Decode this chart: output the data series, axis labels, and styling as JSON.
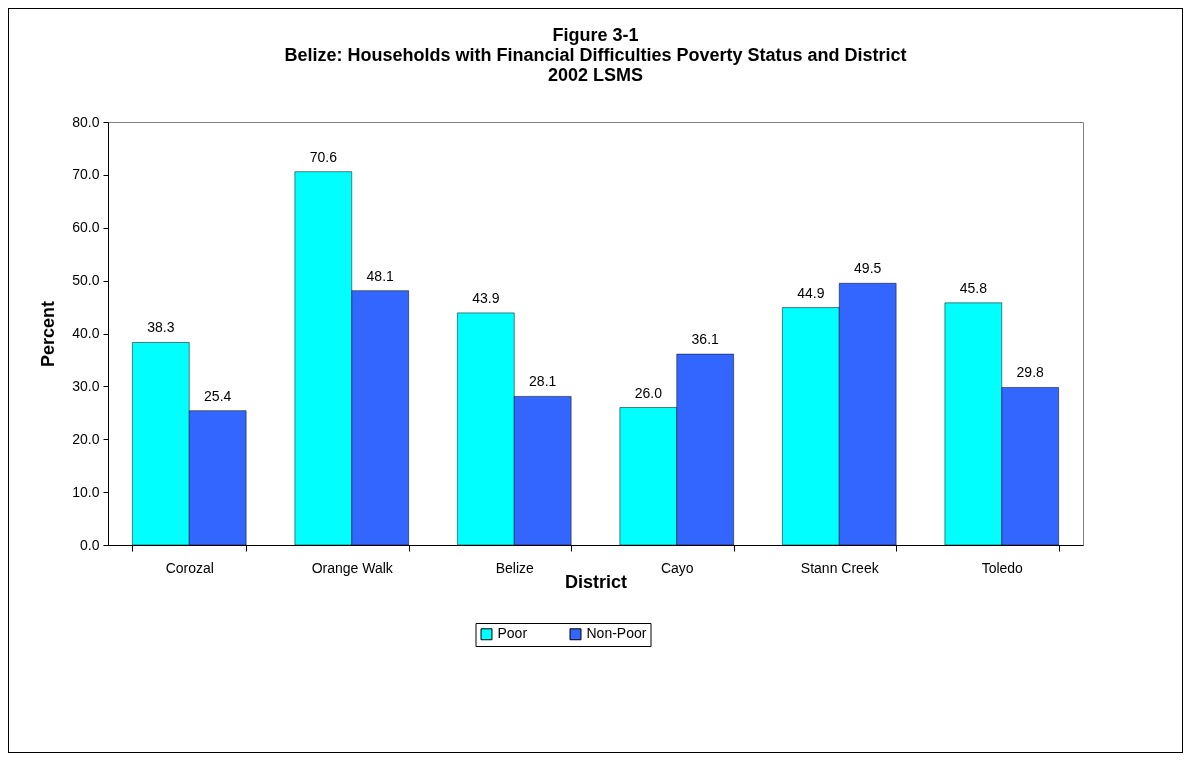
{
  "chart_data": {
    "type": "bar",
    "title": "Figure 3-1\nBelize: Households with Financial Difficulties Poverty Status and District\n2002 LSMS",
    "xlabel": "District",
    "ylabel": "Percent",
    "categories": [
      "Corozal",
      "Orange Walk",
      "Belize",
      "Cayo",
      "Stann Creek",
      "Toledo"
    ],
    "series": [
      {
        "name": "Poor",
        "color": "#00ffff",
        "values": [
          38.3,
          70.6,
          43.9,
          26,
          44.9,
          45.8
        ],
        "value_labels": [
          "38.3",
          "70.6",
          "43.9",
          "26.0",
          "44.9",
          "45.8"
        ]
      },
      {
        "name": "Non-Poor",
        "color": "#3366ff",
        "values": [
          25.4,
          48.1,
          28.1,
          36.1,
          49.5,
          29.8
        ],
        "value_labels": [
          "25.4",
          "48.1",
          "28.1",
          "36.1",
          "49.5",
          "29.8"
        ]
      }
    ],
    "ylim": [
      0,
      80
    ],
    "yticks": [
      {
        "value": 0,
        "label": "0.0"
      },
      {
        "value": 10,
        "label": "10.0"
      },
      {
        "value": 20,
        "label": "20.0"
      },
      {
        "value": 30,
        "label": "30.0"
      },
      {
        "value": 40,
        "label": "40.0"
      },
      {
        "value": 50,
        "label": "50.0"
      },
      {
        "value": 60,
        "label": "60.0"
      },
      {
        "value": 70,
        "label": "70.0"
      },
      {
        "value": 80,
        "label": "80.0"
      }
    ],
    "grid": false,
    "legend": "bottom"
  }
}
